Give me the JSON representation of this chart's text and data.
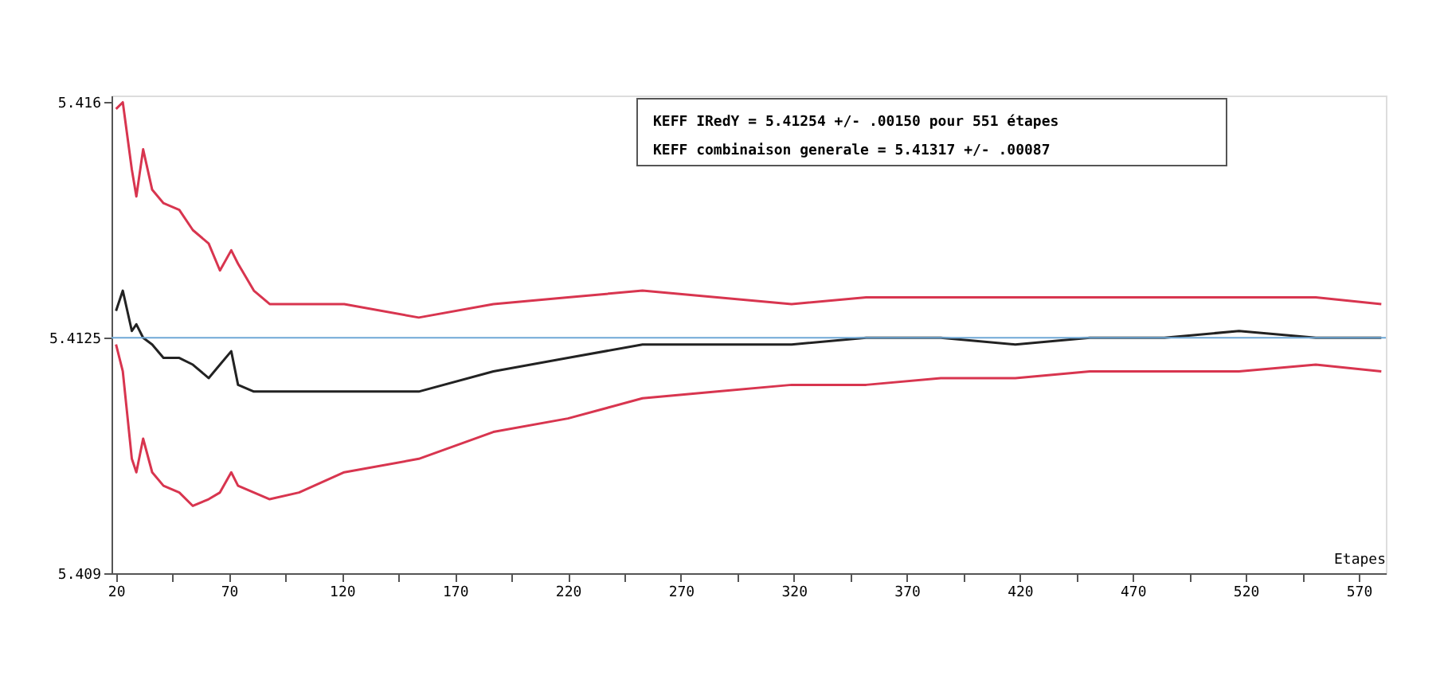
{
  "chart_data": {
    "type": "line",
    "xlabel": "Etapes",
    "x": [
      20,
      23,
      27,
      29,
      32,
      36,
      41,
      48,
      54,
      61,
      66,
      71,
      74,
      81,
      88,
      101,
      121,
      154,
      187,
      220,
      253,
      286,
      319,
      352,
      385,
      418,
      451,
      484,
      517,
      551,
      580
    ],
    "series": [
      {
        "color": "#d8354f",
        "values": [
          5.4159,
          5.416,
          5.415,
          5.4146,
          5.4153,
          5.4147,
          5.4145,
          5.4144,
          5.4141,
          5.4139,
          5.4135,
          5.4138,
          5.4136,
          5.4132,
          5.413,
          5.413,
          5.413,
          5.4128,
          5.413,
          5.4131,
          5.4132,
          5.4131,
          5.413,
          5.4131,
          5.4131,
          5.4131,
          5.4131,
          5.4131,
          5.4131,
          5.4131,
          5.413
        ]
      },
      {
        "color": "#222222",
        "values": [
          5.4129,
          5.4132,
          5.4126,
          5.4127,
          5.4125,
          5.4124,
          5.4122,
          5.4122,
          5.4121,
          5.4119,
          5.4121,
          5.4123,
          5.4118,
          5.4117,
          5.4117,
          5.4117,
          5.4117,
          5.4117,
          5.412,
          5.4122,
          5.4124,
          5.4124,
          5.4124,
          5.4125,
          5.4125,
          5.4124,
          5.4125,
          5.4125,
          5.4126,
          5.4125,
          5.4125
        ]
      },
      {
        "color": "#d8354f",
        "values": [
          5.4124,
          5.412,
          5.4107,
          5.4105,
          5.411,
          5.4105,
          5.4103,
          5.4102,
          5.41,
          5.4101,
          5.4102,
          5.4105,
          5.4103,
          5.4102,
          5.4101,
          5.4102,
          5.4105,
          5.4107,
          5.4111,
          5.4113,
          5.4116,
          5.4117,
          5.4118,
          5.4118,
          5.4119,
          5.4119,
          5.412,
          5.412,
          5.412,
          5.4121,
          5.412
        ]
      }
    ],
    "xlim": [
      18,
      582
    ],
    "xticks": [
      20,
      {
        "value": 45,
        "label": null
      },
      70,
      {
        "value": 95,
        "label": null
      },
      120,
      {
        "value": 145,
        "label": null
      },
      170,
      {
        "value": 195,
        "label": null
      },
      220,
      {
        "value": 245,
        "label": null
      },
      270,
      {
        "value": 295,
        "label": null
      },
      320,
      {
        "value": 345,
        "label": null
      },
      370,
      {
        "value": 395,
        "label": null
      },
      420,
      {
        "value": 445,
        "label": null
      },
      470,
      {
        "value": 495,
        "label": null
      },
      520,
      {
        "value": 545,
        "label": null
      },
      570
    ],
    "ylim": [
      5.409,
      5.4161
    ],
    "yticks": [
      5.409,
      5.4125,
      5.416
    ],
    "ref_lines": [
      {
        "axis": "y",
        "value": 5.4125,
        "color": "#6fa8d6"
      }
    ],
    "annotations": [
      "KEFF IRedY = 5.41254 +/- .00150 pour 551 étapes",
      "KEFF combinaison generale = 5.41317 +/- .00087"
    ],
    "grid": false,
    "marker": "none",
    "line_style": "solid"
  }
}
